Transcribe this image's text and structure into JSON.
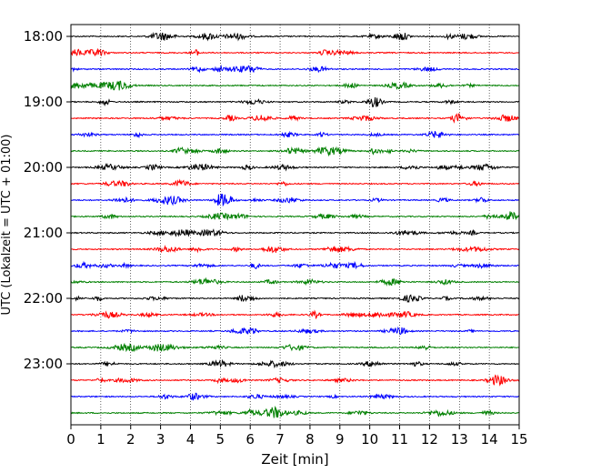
{
  "chart_data": {
    "type": "line",
    "xlabel": "Zeit  [min]",
    "ylabel": "UTC (Lokalzeit = UTC + 01:00)",
    "xlim": [
      0,
      15
    ],
    "x_ticks": [
      "0",
      "1",
      "2",
      "3",
      "4",
      "5",
      "6",
      "7",
      "8",
      "9",
      "10",
      "11",
      "12",
      "13",
      "14",
      "15"
    ],
    "y_ticks": [
      "18:00",
      "19:00",
      "20:00",
      "21:00",
      "22:00",
      "23:00"
    ],
    "trace_interval_minutes": 15,
    "trace_count": 24,
    "trace_colors": [
      "#000000",
      "#ff0000",
      "#0000ff",
      "#008000"
    ],
    "grid": "vertical dotted",
    "first_trace": "18:00",
    "last_trace": "23:45"
  }
}
